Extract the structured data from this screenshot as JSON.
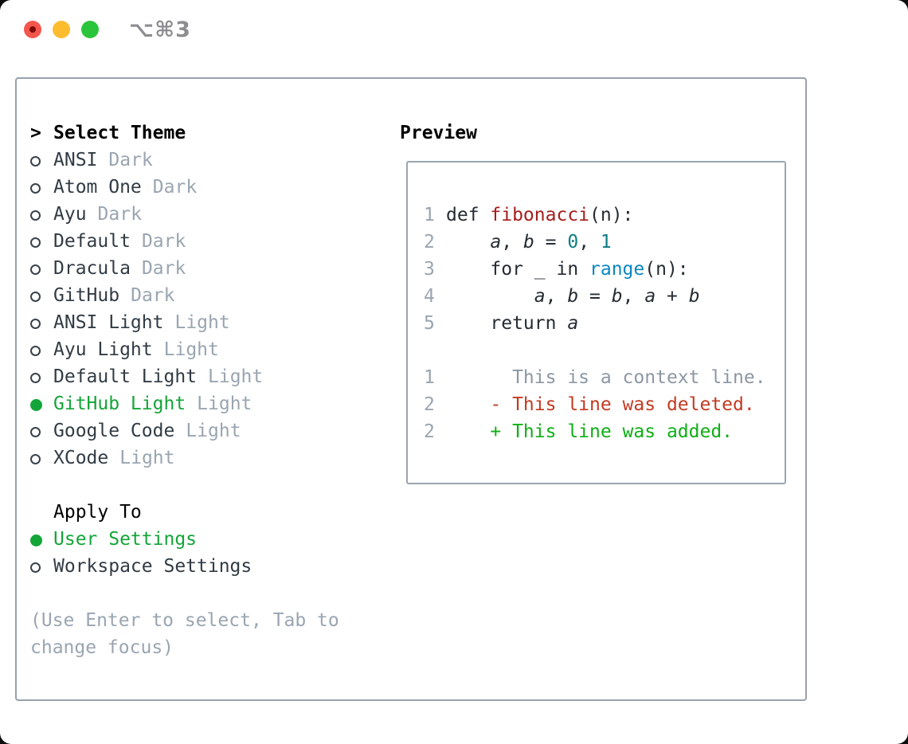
{
  "window": {
    "title": "⌥⌘3",
    "controls": [
      {
        "name": "close-button"
      },
      {
        "name": "minimize-button"
      },
      {
        "name": "zoom-button"
      }
    ]
  },
  "colors": {
    "traffic_red": "#f3564c",
    "traffic_yellow": "#fdbc2e",
    "traffic_green": "#2bc53b",
    "panel_border": "#98a2ad",
    "accent_green": "#14a538",
    "muted_gray": "#9aa5b1",
    "text_dark": "#323b44",
    "syntax_function_red": "#a61d1d",
    "syntax_number_teal": "#0d7d84",
    "syntax_builtin_blue": "#0a87c2",
    "diff_removed_red": "#c23b22",
    "diff_added_green": "#0db014"
  },
  "theme_panel": {
    "prompt": ">",
    "title": "Select Theme",
    "themes": [
      {
        "name": "ANSI",
        "tag": "Dark",
        "selected": false
      },
      {
        "name": "Atom One",
        "tag": "Dark",
        "selected": false
      },
      {
        "name": "Ayu",
        "tag": "Dark",
        "selected": false
      },
      {
        "name": "Default",
        "tag": "Dark",
        "selected": false
      },
      {
        "name": "Dracula",
        "tag": "Dark",
        "selected": false
      },
      {
        "name": "GitHub",
        "tag": "Dark",
        "selected": false
      },
      {
        "name": "ANSI Light",
        "tag": "Light",
        "selected": false
      },
      {
        "name": "Ayu Light",
        "tag": "Light",
        "selected": false
      },
      {
        "name": "Default Light",
        "tag": "Light",
        "selected": false
      },
      {
        "name": "GitHub Light",
        "tag": "Light",
        "selected": true
      },
      {
        "name": "Google Code",
        "tag": "Light",
        "selected": false
      },
      {
        "name": "XCode",
        "tag": "Light",
        "selected": false
      }
    ],
    "apply": {
      "title": "Apply To",
      "options": [
        {
          "label": "User Settings",
          "selected": true
        },
        {
          "label": "Workspace Settings",
          "selected": false
        }
      ]
    },
    "hint": [
      "(Use Enter to select, Tab to",
      "change focus)"
    ]
  },
  "preview_panel": {
    "title": "Preview",
    "code_lines": [
      {
        "num": "1",
        "segments": [
          {
            "text": "def ",
            "style": "plain"
          },
          {
            "text": "fibonacci",
            "style": "func"
          },
          {
            "text": "(n):",
            "style": "plain"
          }
        ]
      },
      {
        "num": "2",
        "segments": [
          {
            "text": "    ",
            "style": "plain"
          },
          {
            "text": "a",
            "style": "var"
          },
          {
            "text": ", ",
            "style": "plain"
          },
          {
            "text": "b",
            "style": "var"
          },
          {
            "text": " = ",
            "style": "plain"
          },
          {
            "text": "0",
            "style": "number"
          },
          {
            "text": ", ",
            "style": "plain"
          },
          {
            "text": "1",
            "style": "number"
          }
        ]
      },
      {
        "num": "3",
        "segments": [
          {
            "text": "    for _ in ",
            "style": "plain"
          },
          {
            "text": "range",
            "style": "builtin"
          },
          {
            "text": "(n):",
            "style": "plain"
          }
        ]
      },
      {
        "num": "4",
        "segments": [
          {
            "text": "        ",
            "style": "plain"
          },
          {
            "text": "a",
            "style": "var"
          },
          {
            "text": ", ",
            "style": "plain"
          },
          {
            "text": "b",
            "style": "var"
          },
          {
            "text": " = ",
            "style": "plain"
          },
          {
            "text": "b",
            "style": "var"
          },
          {
            "text": ", ",
            "style": "plain"
          },
          {
            "text": "a",
            "style": "var"
          },
          {
            "text": " + ",
            "style": "plain"
          },
          {
            "text": "b",
            "style": "var"
          }
        ]
      },
      {
        "num": "5",
        "segments": [
          {
            "text": "    return ",
            "style": "plain"
          },
          {
            "text": "a",
            "style": "var"
          }
        ]
      }
    ],
    "diff_lines": [
      {
        "num": "1",
        "segments": [
          {
            "text": "      This is a context line.",
            "style": "context"
          }
        ]
      },
      {
        "num": "2",
        "segments": [
          {
            "text": "    ",
            "style": "plain"
          },
          {
            "text": "- This line was deleted.",
            "style": "removed"
          }
        ]
      },
      {
        "num": "2",
        "segments": [
          {
            "text": "    ",
            "style": "plain"
          },
          {
            "text": "+ This line was added.",
            "style": "added"
          }
        ]
      }
    ]
  }
}
